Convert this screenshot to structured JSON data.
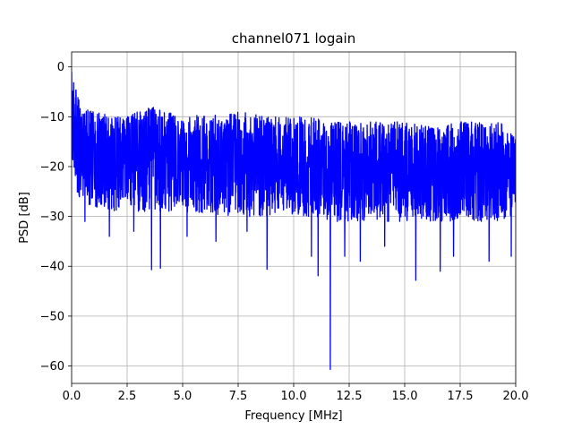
{
  "chart_data": {
    "type": "line",
    "title": "channel071 logain",
    "xlabel": "Frequency [MHz]",
    "ylabel": "PSD [dB]",
    "xlim": [
      0,
      20
    ],
    "ylim": [
      -63.5,
      3
    ],
    "xticks": [
      0,
      2.5,
      5,
      7.5,
      10,
      12.5,
      15,
      17.5,
      20
    ],
    "xtick_labels": [
      "0.0",
      "2.5",
      "5.0",
      "7.5",
      "10.0",
      "12.5",
      "15.0",
      "17.5",
      "20.0"
    ],
    "yticks": [
      0,
      -10,
      -20,
      -30,
      -40,
      -50,
      -60
    ],
    "ytick_labels": [
      "0",
      "−10",
      "−20",
      "−30",
      "−40",
      "−50",
      "−60"
    ],
    "grid": true,
    "legend": null,
    "colors": {
      "series": "#0000ff",
      "grid": "#b0b0b0",
      "axis": "#000000"
    },
    "series": [
      {
        "color": "#0000ff",
        "envelope_x": [
          0,
          0.1,
          0.3,
          0.5,
          1.0,
          2.0,
          3.0,
          3.6,
          5.0,
          7.5,
          10.0,
          11.0,
          11.6,
          12.0,
          13.0,
          15.0,
          16.5,
          17.5,
          19.0,
          20.0
        ],
        "envelope_upper": [
          -1,
          -3,
          -6,
          -8,
          -9,
          -10,
          -9,
          -8,
          -10,
          -9,
          -10,
          -10,
          -11,
          -11,
          -11,
          -11,
          -12,
          -11,
          -11,
          -12
        ],
        "envelope_mid": [
          -8,
          -12,
          -14,
          -16,
          -17,
          -18,
          -18,
          -18,
          -18,
          -19,
          -19,
          -19,
          -20,
          -20,
          -20,
          -20,
          -20,
          -20,
          -20,
          -20
        ],
        "envelope_lower": [
          -16,
          -22,
          -26,
          -28,
          -28,
          -29,
          -29,
          -29,
          -29,
          -30,
          -30,
          -30,
          -31,
          -31,
          -31,
          -31,
          -31,
          -31,
          -31,
          -30
        ],
        "dips": [
          {
            "x": 0.6,
            "y": -31
          },
          {
            "x": 1.7,
            "y": -34
          },
          {
            "x": 2.8,
            "y": -33
          },
          {
            "x": 3.6,
            "y": -40.7
          },
          {
            "x": 4.0,
            "y": -40.4
          },
          {
            "x": 5.2,
            "y": -34
          },
          {
            "x": 6.5,
            "y": -35
          },
          {
            "x": 7.9,
            "y": -33
          },
          {
            "x": 8.8,
            "y": -40.6
          },
          {
            "x": 10.8,
            "y": -38
          },
          {
            "x": 11.1,
            "y": -41.9
          },
          {
            "x": 11.65,
            "y": -60.7
          },
          {
            "x": 12.3,
            "y": -38
          },
          {
            "x": 13.0,
            "y": -39
          },
          {
            "x": 14.1,
            "y": -36
          },
          {
            "x": 15.5,
            "y": -42.8
          },
          {
            "x": 16.6,
            "y": -41
          },
          {
            "x": 17.2,
            "y": -38
          },
          {
            "x": 18.8,
            "y": -39
          },
          {
            "x": 19.8,
            "y": -38
          }
        ]
      }
    ]
  }
}
